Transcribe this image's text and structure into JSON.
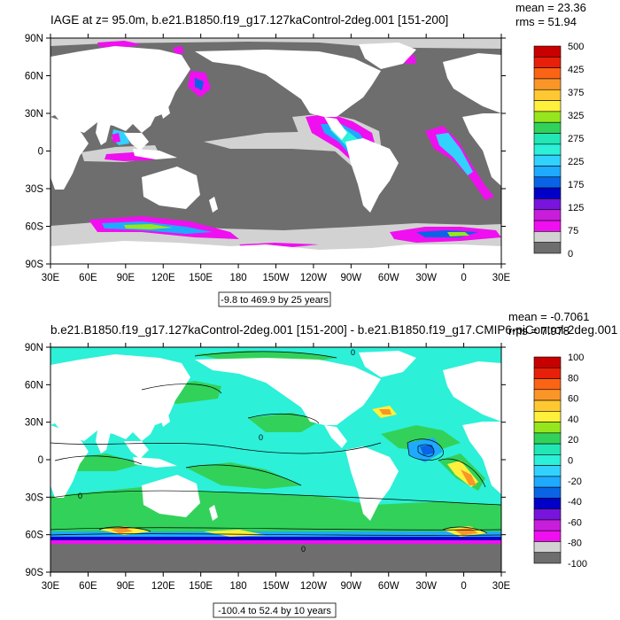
{
  "panel1": {
    "title": "IAGE at z=  95.0m, b.e21.B1850.f19_g17.127kaControl-2deg.001 [151-200]",
    "mean": "mean = 23.36",
    "rms": "rms = 51.94",
    "range": "-9.8 to 469.9 by 25 years",
    "lat_labels": [
      "90N",
      "60N",
      "30N",
      "0",
      "30S",
      "60S",
      "90S"
    ],
    "lon_labels": [
      "30E",
      "60E",
      "90E",
      "120E",
      "150E",
      "180",
      "150W",
      "120W",
      "90W",
      "60W",
      "30W",
      "0",
      "30E"
    ],
    "colorbar_labels": [
      "500",
      "425",
      "375",
      "325",
      "275",
      "225",
      "175",
      "125",
      "75",
      "0"
    ],
    "colorbar_colors": [
      "#c80000",
      "#e8200a",
      "#fa6414",
      "#fa9628",
      "#ffc832",
      "#fff03c",
      "#96e61e",
      "#32d25a",
      "#22e6b4",
      "#2cf0d8",
      "#32d2ff",
      "#1eaaff",
      "#0a64e6",
      "#0000c8",
      "#7814dc",
      "#c81edc",
      "#f00ff0",
      "#d2d2d2",
      "#6e6e6e"
    ]
  },
  "panel2": {
    "title": "b.e21.B1850.f19_g17.127kaControl-2deg.001 [151-200] - b.e21.B1850.f19_g17.CMIP6-piControl-2deg.001",
    "mean": "mean = -0.7061",
    "rms": "rms = 7.978",
    "range": "-100.4 to 52.4 by 10 years",
    "lat_labels": [
      "90N",
      "60N",
      "30N",
      "0",
      "30S",
      "60S",
      "90S"
    ],
    "lon_labels": [
      "30E",
      "60E",
      "90E",
      "120E",
      "150E",
      "180",
      "150W",
      "120W",
      "90W",
      "60W",
      "30W",
      "0",
      "30E"
    ],
    "colorbar_labels": [
      "100",
      "80",
      "60",
      "40",
      "20",
      "0",
      "-20",
      "-40",
      "-60",
      "-80",
      "-100"
    ],
    "colorbar_colors": [
      "#c80000",
      "#e8200a",
      "#fa6414",
      "#fa9628",
      "#ffc832",
      "#fff03c",
      "#96e61e",
      "#32d25a",
      "#22e6b4",
      "#2cf0d8",
      "#32d2ff",
      "#1eaaff",
      "#0a64e6",
      "#0000c8",
      "#7814dc",
      "#c81edc",
      "#f00ff0",
      "#d2d2d2",
      "#6e6e6e"
    ],
    "contour_label": "0"
  },
  "colors": {
    "land": "#ffffff",
    "ocean_gray": "#6e6e6e",
    "light_gray": "#d2d2d2",
    "magenta": "#f00ff0",
    "cyan": "#2cf0d8",
    "green": "#32d25a",
    "contour": "#000000"
  }
}
